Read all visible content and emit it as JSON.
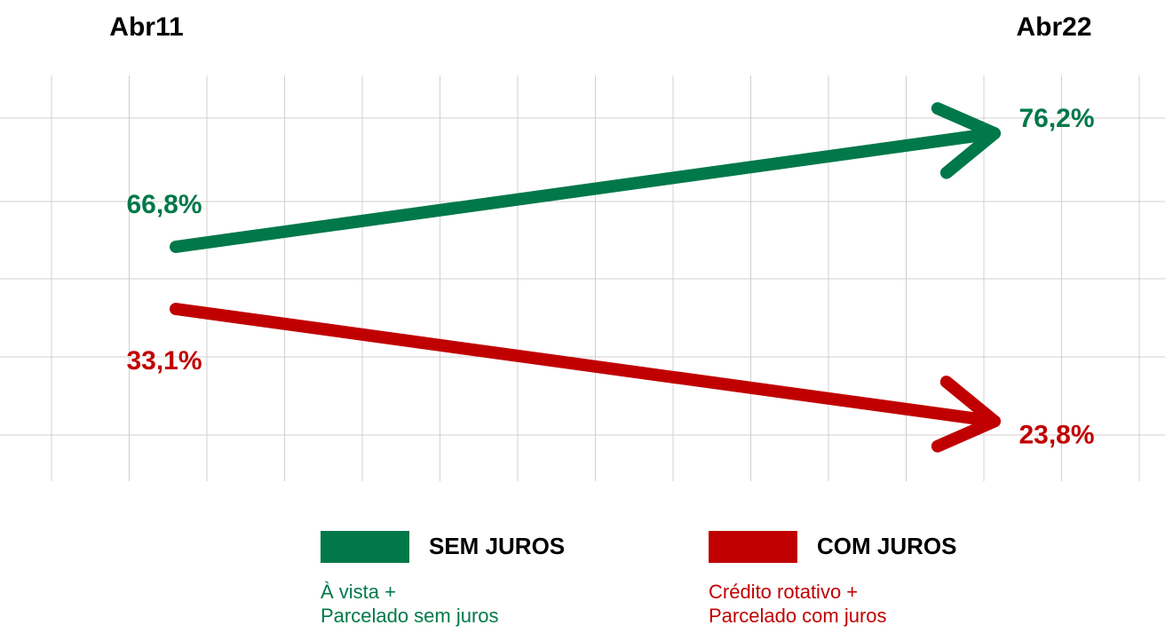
{
  "chart_data": {
    "type": "slope",
    "categories": [
      "Abr11",
      "Abr22"
    ],
    "series": [
      {
        "name": "SEM JUROS",
        "color": "#00784a",
        "values": [
          66.8,
          76.2
        ],
        "value_labels": [
          "66,8%",
          "76,2%"
        ],
        "note": [
          "À vista +",
          "Parcelado sem juros"
        ]
      },
      {
        "name": "COM JUROS",
        "color": "#c00000",
        "values": [
          33.1,
          23.8
        ],
        "value_labels": [
          "33,1%",
          "23,8%"
        ],
        "note": [
          "Crédito rotativo +",
          "Parcelado com juros"
        ]
      }
    ],
    "grid": true
  }
}
